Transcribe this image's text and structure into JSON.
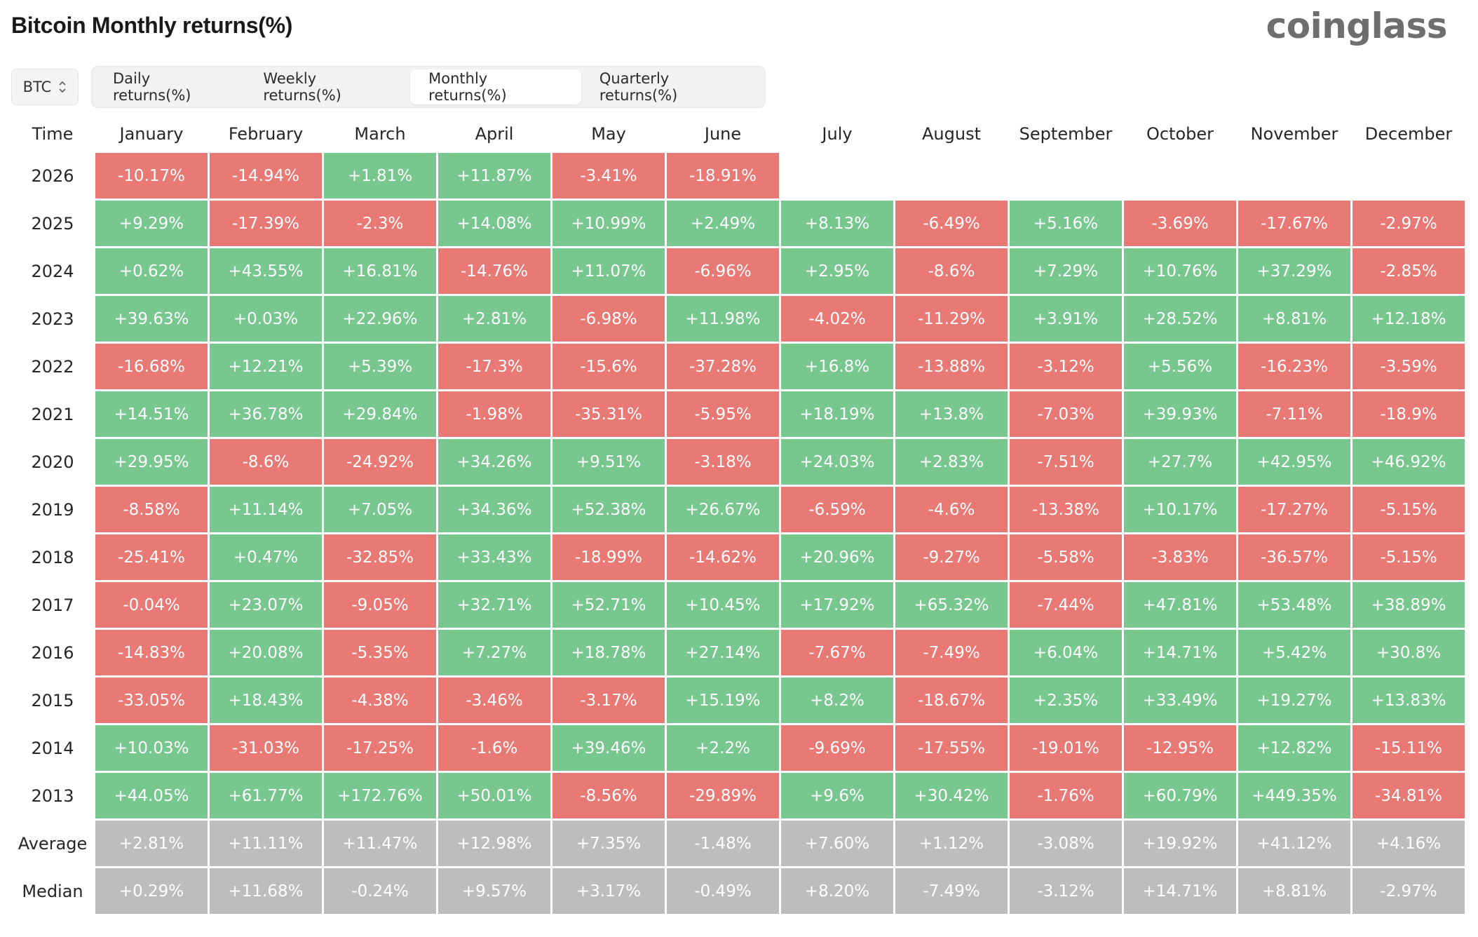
{
  "header": {
    "title": "Bitcoin Monthly returns(%)",
    "brand": "coinglass"
  },
  "coin_selector": {
    "value": "BTC",
    "icon": "chevron-updown-icon"
  },
  "tabs": [
    {
      "label": "Daily returns(%)",
      "active": false
    },
    {
      "label": "Weekly returns(%)",
      "active": false
    },
    {
      "label": "Monthly returns(%)",
      "active": true
    },
    {
      "label": "Quarterly returns(%)",
      "active": false
    }
  ],
  "colors": {
    "positive": "#78c78f",
    "negative": "#e97975",
    "summary": "#bdbdbd"
  },
  "chart_data": {
    "type": "table",
    "title": "Bitcoin Monthly returns(%)",
    "row_header": "Time",
    "columns": [
      "January",
      "February",
      "March",
      "April",
      "May",
      "June",
      "July",
      "August",
      "September",
      "October",
      "November",
      "December"
    ],
    "rows": [
      {
        "label": "2026",
        "values": [
          "-10.17%",
          "-14.94%",
          "+1.81%",
          "+11.87%",
          "-3.41%",
          "-18.91%",
          "",
          "",
          "",
          "",
          "",
          ""
        ]
      },
      {
        "label": "2025",
        "values": [
          "+9.29%",
          "-17.39%",
          "-2.3%",
          "+14.08%",
          "+10.99%",
          "+2.49%",
          "+8.13%",
          "-6.49%",
          "+5.16%",
          "-3.69%",
          "-17.67%",
          "-2.97%"
        ]
      },
      {
        "label": "2024",
        "values": [
          "+0.62%",
          "+43.55%",
          "+16.81%",
          "-14.76%",
          "+11.07%",
          "-6.96%",
          "+2.95%",
          "-8.6%",
          "+7.29%",
          "+10.76%",
          "+37.29%",
          "-2.85%"
        ]
      },
      {
        "label": "2023",
        "values": [
          "+39.63%",
          "+0.03%",
          "+22.96%",
          "+2.81%",
          "-6.98%",
          "+11.98%",
          "-4.02%",
          "-11.29%",
          "+3.91%",
          "+28.52%",
          "+8.81%",
          "+12.18%"
        ]
      },
      {
        "label": "2022",
        "values": [
          "-16.68%",
          "+12.21%",
          "+5.39%",
          "-17.3%",
          "-15.6%",
          "-37.28%",
          "+16.8%",
          "-13.88%",
          "-3.12%",
          "+5.56%",
          "-16.23%",
          "-3.59%"
        ]
      },
      {
        "label": "2021",
        "values": [
          "+14.51%",
          "+36.78%",
          "+29.84%",
          "-1.98%",
          "-35.31%",
          "-5.95%",
          "+18.19%",
          "+13.8%",
          "-7.03%",
          "+39.93%",
          "-7.11%",
          "-18.9%"
        ]
      },
      {
        "label": "2020",
        "values": [
          "+29.95%",
          "-8.6%",
          "-24.92%",
          "+34.26%",
          "+9.51%",
          "-3.18%",
          "+24.03%",
          "+2.83%",
          "-7.51%",
          "+27.7%",
          "+42.95%",
          "+46.92%"
        ]
      },
      {
        "label": "2019",
        "values": [
          "-8.58%",
          "+11.14%",
          "+7.05%",
          "+34.36%",
          "+52.38%",
          "+26.67%",
          "-6.59%",
          "-4.6%",
          "-13.38%",
          "+10.17%",
          "-17.27%",
          "-5.15%"
        ]
      },
      {
        "label": "2018",
        "values": [
          "-25.41%",
          "+0.47%",
          "-32.85%",
          "+33.43%",
          "-18.99%",
          "-14.62%",
          "+20.96%",
          "-9.27%",
          "-5.58%",
          "-3.83%",
          "-36.57%",
          "-5.15%"
        ]
      },
      {
        "label": "2017",
        "values": [
          "-0.04%",
          "+23.07%",
          "-9.05%",
          "+32.71%",
          "+52.71%",
          "+10.45%",
          "+17.92%",
          "+65.32%",
          "-7.44%",
          "+47.81%",
          "+53.48%",
          "+38.89%"
        ]
      },
      {
        "label": "2016",
        "values": [
          "-14.83%",
          "+20.08%",
          "-5.35%",
          "+7.27%",
          "+18.78%",
          "+27.14%",
          "-7.67%",
          "-7.49%",
          "+6.04%",
          "+14.71%",
          "+5.42%",
          "+30.8%"
        ]
      },
      {
        "label": "2015",
        "values": [
          "-33.05%",
          "+18.43%",
          "-4.38%",
          "-3.46%",
          "-3.17%",
          "+15.19%",
          "+8.2%",
          "-18.67%",
          "+2.35%",
          "+33.49%",
          "+19.27%",
          "+13.83%"
        ]
      },
      {
        "label": "2014",
        "values": [
          "+10.03%",
          "-31.03%",
          "-17.25%",
          "-1.6%",
          "+39.46%",
          "+2.2%",
          "-9.69%",
          "-17.55%",
          "-19.01%",
          "-12.95%",
          "+12.82%",
          "-15.11%"
        ]
      },
      {
        "label": "2013",
        "values": [
          "+44.05%",
          "+61.77%",
          "+172.76%",
          "+50.01%",
          "-8.56%",
          "-29.89%",
          "+9.6%",
          "+30.42%",
          "-1.76%",
          "+60.79%",
          "+449.35%",
          "-34.81%"
        ]
      }
    ],
    "summary_rows": [
      {
        "label": "Average",
        "values": [
          "+2.81%",
          "+11.11%",
          "+11.47%",
          "+12.98%",
          "+7.35%",
          "-1.48%",
          "+7.60%",
          "+1.12%",
          "-3.08%",
          "+19.92%",
          "+41.12%",
          "+4.16%"
        ]
      },
      {
        "label": "Median",
        "values": [
          "+0.29%",
          "+11.68%",
          "-0.24%",
          "+9.57%",
          "+3.17%",
          "-0.49%",
          "+8.20%",
          "-7.49%",
          "-3.12%",
          "+14.71%",
          "+8.81%",
          "-2.97%"
        ]
      }
    ]
  }
}
